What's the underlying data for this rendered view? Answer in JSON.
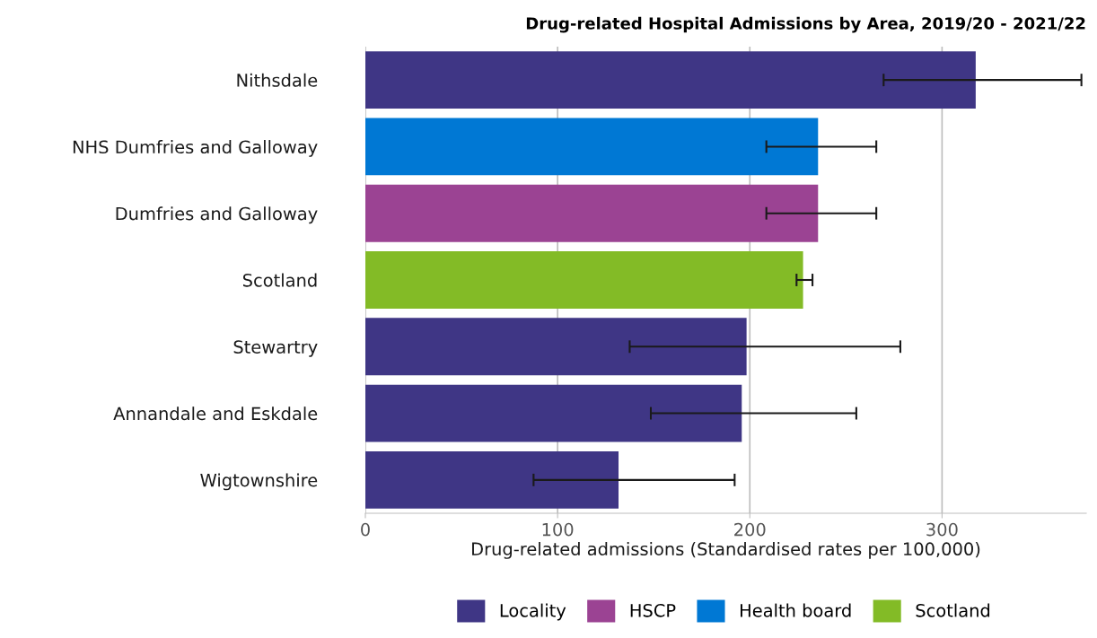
{
  "chart_data": {
    "type": "bar",
    "orientation": "horizontal",
    "title": "Drug-related Hospital Admissions by Area, 2019/20 - 2021/22",
    "xlabel": "Drug-related admissions (Standardised rates per 100,000)",
    "categories": [
      "Nithsdale",
      "NHS Dumfries and Galloway",
      "Dumfries and Galloway",
      "Scotland",
      "Stewartry",
      "Annandale and Eskdale",
      "Wigtownshire"
    ],
    "series": [
      {
        "name": "Locality",
        "color": "#3f3685",
        "values": [
          317.5,
          null,
          null,
          null,
          198.3,
          195.8,
          131.7
        ],
        "errors": [
          [
            269.6,
            372.5
          ],
          null,
          null,
          null,
          [
            137.5,
            278.3
          ],
          [
            148.5,
            255.4
          ],
          [
            87.5,
            192.1
          ]
        ]
      },
      {
        "name": "HSCP",
        "color": "#9b4393",
        "values": [
          null,
          null,
          235.5,
          null,
          null,
          null,
          null
        ],
        "errors": [
          null,
          null,
          [
            208.6,
            265.8
          ],
          null,
          null,
          null,
          null
        ]
      },
      {
        "name": "Health board",
        "color": "#0078d4",
        "values": [
          null,
          235.5,
          null,
          null,
          null,
          null,
          null
        ],
        "errors": [
          null,
          [
            208.6,
            265.8
          ],
          null,
          null,
          null,
          null,
          null
        ]
      },
      {
        "name": "Scotland",
        "color": "#83bb26",
        "values": [
          null,
          null,
          null,
          227.7,
          null,
          null,
          null
        ],
        "errors": [
          null,
          null,
          null,
          [
            224.3,
            232.6
          ],
          null,
          null,
          null
        ]
      }
    ],
    "xlim": [
      0,
      375
    ],
    "xticks": [
      0,
      100,
      200,
      300
    ],
    "grid": "x",
    "legend": "bottom"
  }
}
